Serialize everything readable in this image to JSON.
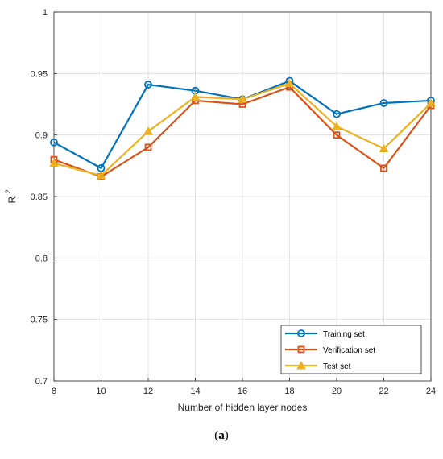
{
  "chart_data": {
    "type": "line",
    "xlabel": "Number of hidden layer nodes",
    "ylabel": "R",
    "ylabel_sup": "2",
    "x": [
      8,
      10,
      12,
      14,
      16,
      18,
      20,
      22,
      24
    ],
    "xlim": [
      8,
      24
    ],
    "ylim": [
      0.7,
      1.0
    ],
    "xticks": [
      "8",
      "10",
      "12",
      "14",
      "16",
      "18",
      "20",
      "22",
      "24"
    ],
    "yticks": [
      "0.7",
      "0.75",
      "0.8",
      "0.85",
      "0.9",
      "0.95",
      "1"
    ],
    "grid": true,
    "legend_position": "bottom-right",
    "series": [
      {
        "name": "Training set",
        "color": "#0072BD",
        "marker": "circle",
        "values": [
          0.894,
          0.873,
          0.941,
          0.936,
          0.929,
          0.944,
          0.917,
          0.926,
          0.928
        ]
      },
      {
        "name": "Verification set",
        "color": "#D95319",
        "marker": "square",
        "values": [
          0.88,
          0.866,
          0.89,
          0.928,
          0.925,
          0.939,
          0.9,
          0.873,
          0.924
        ]
      },
      {
        "name": "Test set",
        "color": "#EDB120",
        "marker": "triangle",
        "values": [
          0.877,
          0.867,
          0.903,
          0.931,
          0.929,
          0.942,
          0.907,
          0.889,
          0.926
        ]
      }
    ]
  },
  "caption": {
    "prefix": "(",
    "letter": "a",
    "suffix": ")"
  }
}
